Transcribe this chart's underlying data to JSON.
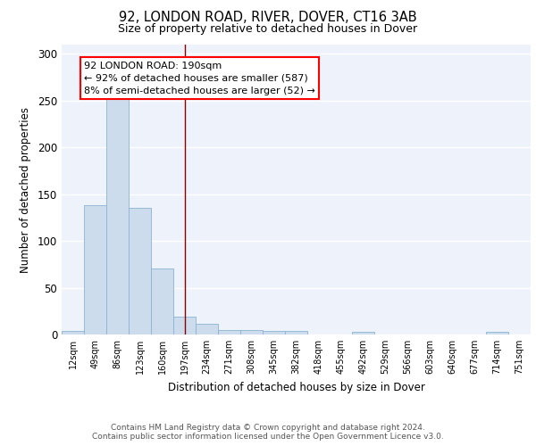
{
  "title1": "92, LONDON ROAD, RIVER, DOVER, CT16 3AB",
  "title2": "Size of property relative to detached houses in Dover",
  "xlabel": "Distribution of detached houses by size in Dover",
  "ylabel": "Number of detached properties",
  "bin_labels": [
    "12sqm",
    "49sqm",
    "86sqm",
    "123sqm",
    "160sqm",
    "197sqm",
    "234sqm",
    "271sqm",
    "308sqm",
    "345sqm",
    "382sqm",
    "418sqm",
    "455sqm",
    "492sqm",
    "529sqm",
    "566sqm",
    "603sqm",
    "640sqm",
    "677sqm",
    "714sqm",
    "751sqm"
  ],
  "bar_heights": [
    4,
    138,
    255,
    135,
    71,
    19,
    11,
    5,
    5,
    4,
    4,
    0,
    0,
    3,
    0,
    0,
    0,
    0,
    0,
    3,
    0
  ],
  "bar_color": "#ccdcec",
  "bar_edgecolor": "#8ab4d4",
  "vline_x_index": 5,
  "vline_color": "#8b0000",
  "annotation_text": "92 LONDON ROAD: 190sqm\n← 92% of detached houses are smaller (587)\n8% of semi-detached houses are larger (52) →",
  "annotation_box_facecolor": "white",
  "annotation_box_edgecolor": "red",
  "ylim": [
    0,
    310
  ],
  "yticks": [
    0,
    50,
    100,
    150,
    200,
    250,
    300
  ],
  "footer_text": "Contains HM Land Registry data © Crown copyright and database right 2024.\nContains public sector information licensed under the Open Government Licence v3.0.",
  "bg_color": "#eef2fa",
  "grid_color": "white"
}
